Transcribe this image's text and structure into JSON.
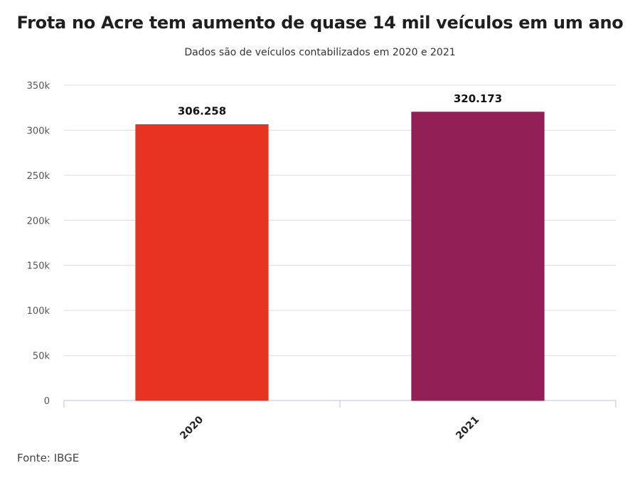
{
  "chart_data": {
    "type": "bar",
    "title": "Frota no Acre tem aumento de quase 14 mil veículos em um ano",
    "subtitle": "Dados são de veículos contabilizados em 2020 e 2021",
    "categories": [
      "2020",
      "2021"
    ],
    "values": [
      306258,
      320173
    ],
    "data_labels": [
      "306.258",
      "320.173"
    ],
    "bar_colors": [
      "#e83323",
      "#931f57"
    ],
    "ylim": [
      0,
      350000
    ],
    "yticks": [
      0,
      50000,
      100000,
      150000,
      200000,
      250000,
      300000,
      350000
    ],
    "ytick_labels": [
      "0",
      "50k",
      "100k",
      "150k",
      "200k",
      "250k",
      "300k",
      "350k"
    ],
    "xlabel": "",
    "ylabel": "",
    "grid": true,
    "legend": false
  },
  "source": "Fonte: IBGE"
}
